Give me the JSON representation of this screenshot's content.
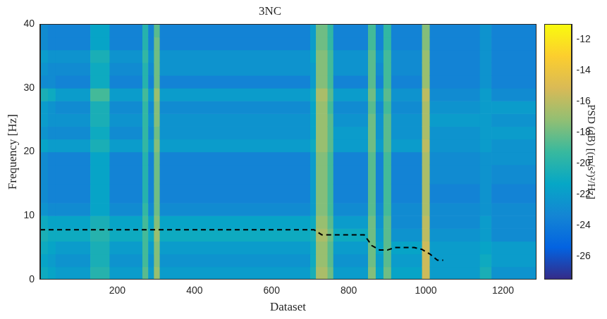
{
  "chart_data": {
    "type": "heatmap",
    "title": "3NC",
    "x_label": "Dataset",
    "y_label": "Frequency [Hz]",
    "xlim": [
      0,
      1285
    ],
    "xticks": [
      200,
      400,
      600,
      800,
      1000,
      1200
    ],
    "ylim": [
      0,
      40
    ],
    "yticks": [
      0,
      10,
      20,
      30,
      40
    ],
    "grid": false,
    "x_edges": [
      0,
      20,
      40,
      130,
      180,
      265,
      280,
      295,
      310,
      700,
      715,
      745,
      760,
      850,
      870,
      890,
      910,
      990,
      1010,
      1140,
      1170,
      1285
    ],
    "y_edges": [
      0,
      2,
      4,
      6,
      8,
      10,
      12,
      15,
      18,
      20,
      22,
      24,
      26,
      28,
      30,
      32,
      34,
      36,
      38,
      40
    ],
    "cells": [
      [
        -21,
        -21.5,
        -21,
        -20.5,
        -21,
        -22.5,
        -23,
        -23,
        -23,
        -21.5,
        -22.5,
        -22,
        -22,
        -20.5,
        -23,
        -22.5,
        -22,
        -23,
        -23
      ],
      [
        -21.5,
        -22,
        -21.5,
        -21,
        -21.5,
        -23,
        -23.5,
        -23.5,
        -23.5,
        -22,
        -23,
        -22.5,
        -22.5,
        -21,
        -23,
        -23,
        -22.5,
        -23.5,
        -23.5
      ],
      [
        -22,
        -22.5,
        -22,
        -21,
        -21.5,
        -23,
        -23.5,
        -23.5,
        -23.5,
        -22,
        -23,
        -22.5,
        -23,
        -22,
        -23.5,
        -23,
        -22.5,
        -23.5,
        -23.5
      ],
      [
        -20,
        -20.5,
        -20.5,
        -20,
        -20.5,
        -21.5,
        -21.5,
        -21.5,
        -21.5,
        -20.5,
        -21,
        -20.5,
        -20.5,
        -19,
        -21,
        -21,
        -20.5,
        -21.5,
        -21.5
      ],
      [
        -22,
        -22.5,
        -22,
        -21,
        -21.5,
        -23,
        -23.5,
        -23.5,
        -23.5,
        -22,
        -23,
        -22.5,
        -23,
        -22,
        -23.5,
        -23,
        -22.5,
        -23.5,
        -23.5
      ],
      [
        -18.5,
        -19,
        -19,
        -19,
        -19,
        -19.5,
        -20,
        -20,
        -20,
        -19.5,
        -19.5,
        -19.5,
        -19.5,
        -19,
        -20,
        -20,
        -19.5,
        -20,
        -20
      ],
      [
        -22,
        -22.5,
        -22,
        -21,
        -21.5,
        -23,
        -23.5,
        -23.5,
        -23.5,
        -22,
        -23,
        -22.5,
        -23,
        -22,
        -23.5,
        -23,
        -22.5,
        -23.5,
        -23.5
      ],
      [
        -17,
        -17.5,
        -17.5,
        -17,
        -17.5,
        -18,
        -18,
        -18,
        -18,
        -17.5,
        -18,
        -17.5,
        -17.5,
        -17,
        -18,
        -18,
        -18,
        -18,
        -18.5
      ],
      [
        -22,
        -22.5,
        -22,
        -21,
        -21.5,
        -23,
        -23.5,
        -23.5,
        -23.5,
        -22,
        -22.5,
        -22.5,
        -23,
        -22,
        -23.5,
        -22.5,
        -22.5,
        -23.5,
        -23.5
      ],
      [
        -20.5,
        -21,
        -21,
        -20.5,
        -21,
        -22,
        -22,
        -22,
        -22,
        -21,
        -21.5,
        -21.5,
        -21.5,
        -21,
        -22,
        -22,
        -21.5,
        -22,
        -22
      ],
      [
        -16.5,
        -17,
        -17,
        -16.5,
        -17,
        -17.5,
        -17.5,
        -17.5,
        -17.5,
        -17,
        -17,
        -17,
        -17,
        -16.5,
        -17.5,
        -17.5,
        -17.5,
        -18,
        -18
      ],
      [
        -18,
        -18.5,
        -18.5,
        -18,
        -18.5,
        -19,
        -19,
        -19,
        -19,
        -18.5,
        -18.5,
        -18.5,
        -19,
        -18.5,
        -19,
        -19,
        -19,
        -19.5,
        -19.5
      ],
      [
        -22,
        -22.5,
        -22,
        -21,
        -22,
        -23,
        -23.5,
        -23.5,
        -23.5,
        -22,
        -22,
        -22.5,
        -23,
        -22,
        -23.5,
        -22.5,
        -22.5,
        -23.5,
        -23.5
      ],
      [
        -17.5,
        -18,
        -18,
        -18,
        -18,
        -18.5,
        -18.5,
        -18.5,
        -18.5,
        -18,
        -18,
        -18,
        -18.5,
        -18,
        -18.5,
        -18.5,
        -18.5,
        -19,
        -19
      ],
      [
        -21.5,
        -22,
        -21.5,
        -22,
        -22.5,
        -23,
        -23.5,
        -23.5,
        -23.5,
        -22,
        -22.5,
        -22.5,
        -23,
        -22,
        -23.5,
        -23,
        -22.5,
        -23.5,
        -23.5
      ],
      [
        -18,
        -18.5,
        -18.5,
        -18.5,
        -18.5,
        -19,
        -19,
        -19,
        -19,
        -18.5,
        -18.5,
        -18.5,
        -19,
        -18.5,
        -19,
        -19,
        -19,
        -19.5,
        -19.5
      ],
      [
        -21.5,
        -22,
        -21.5,
        -22.5,
        -23,
        -23,
        -23.5,
        -23.5,
        -23.5,
        -22,
        -22.5,
        -22.5,
        -23,
        -22.5,
        -23.5,
        -23,
        -23,
        -23.5,
        -23.5
      ],
      [
        -15.5,
        -15.5,
        -15.5,
        -16,
        -16,
        -16.5,
        -16.5,
        -16.5,
        -16.5,
        -16,
        -16.5,
        -16.5,
        -16.5,
        -16,
        -17,
        -17,
        -17,
        -17.5,
        -17.5
      ],
      [
        -22,
        -22,
        -22,
        -22.5,
        -23,
        -23,
        -23.5,
        -23,
        -23,
        -22.5,
        -22.5,
        -22,
        -22.5,
        -23,
        -23.5,
        -23.5,
        -23.5,
        -23.5,
        -23.5
      ],
      [
        -20.5,
        -21,
        -21.5,
        -22,
        -22,
        -22.5,
        -22.5,
        -22.5,
        -22.5,
        -22,
        -22,
        -22,
        -22,
        -22,
        -22.5,
        -22.5,
        -22.5,
        -22.5,
        -22.5
      ],
      [
        -22.5,
        -22,
        -22,
        -23,
        -23,
        -23,
        -23.5,
        -23,
        -22.5,
        -22.5,
        -22,
        -22.5,
        -22,
        -23,
        -23.5,
        -23.5,
        -23.5,
        -23.5,
        -23.5
      ]
    ],
    "colorbar": {
      "label": "PSD (dB) [(m/s²)²/Hz]",
      "range": [
        -27.5,
        -11
      ],
      "ticks": [
        -26,
        -24,
        -22,
        -20,
        -18,
        -16,
        -14,
        -12
      ]
    },
    "series": [
      {
        "type": "line",
        "color": "#000000",
        "line_style": "dashed",
        "x": [
          0,
          710,
          730,
          840,
          860,
          880,
          900,
          920,
          970,
          990,
          1010,
          1030,
          1045
        ],
        "values": [
          7.8,
          7.8,
          7,
          7,
          5.3,
          4.6,
          4.6,
          5,
          5,
          4.7,
          4,
          3,
          3
        ]
      }
    ]
  }
}
